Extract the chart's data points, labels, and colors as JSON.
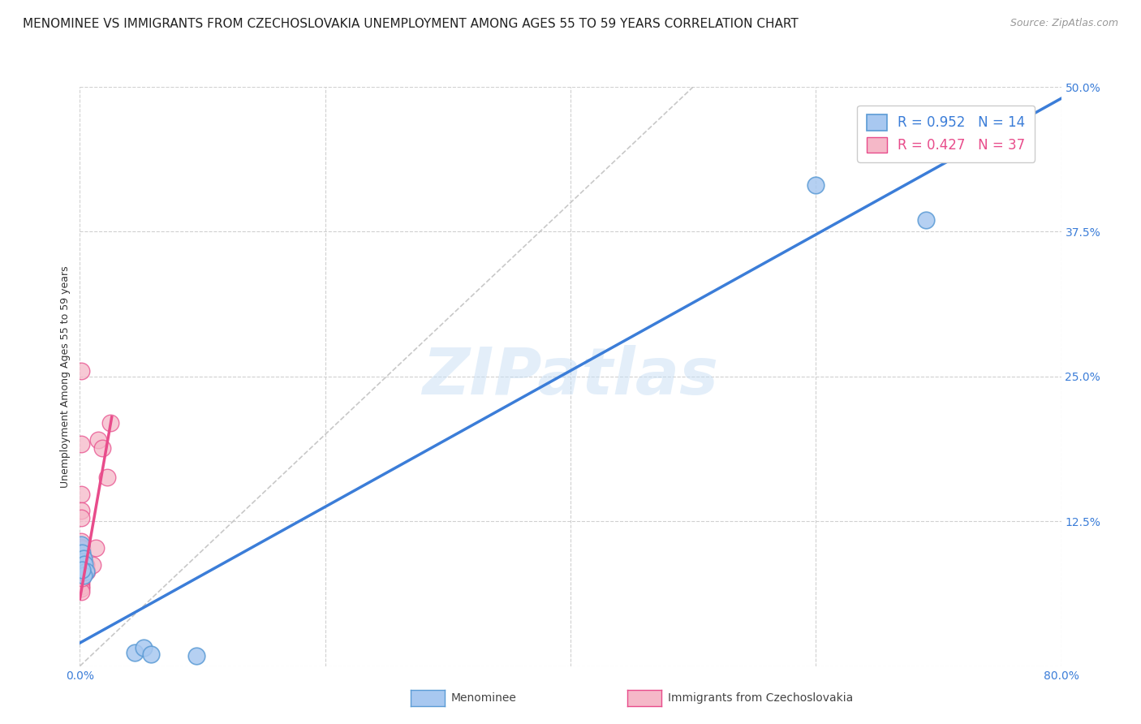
{
  "title": "MENOMINEE VS IMMIGRANTS FROM CZECHOSLOVAKIA UNEMPLOYMENT AMONG AGES 55 TO 59 YEARS CORRELATION CHART",
  "source": "Source: ZipAtlas.com",
  "ylabel": "Unemployment Among Ages 55 to 59 years",
  "xlim": [
    0.0,
    0.8
  ],
  "ylim": [
    0.0,
    0.5
  ],
  "xticks": [
    0.0,
    0.2,
    0.4,
    0.6,
    0.8
  ],
  "xticklabels": [
    "0.0%",
    "",
    "",
    "",
    "80.0%"
  ],
  "yticks": [
    0.0,
    0.125,
    0.25,
    0.375,
    0.5
  ],
  "yticklabels": [
    "",
    "12.5%",
    "25.0%",
    "37.5%",
    "50.0%"
  ],
  "watermark": "ZIPatlas",
  "legend_line1": "R = 0.952   N = 14",
  "legend_line2": "R = 0.427   N = 37",
  "blue_scatter": [
    [
      0.001,
      0.105
    ],
    [
      0.002,
      0.098
    ],
    [
      0.002,
      0.09
    ],
    [
      0.003,
      0.093
    ],
    [
      0.004,
      0.088
    ],
    [
      0.005,
      0.082
    ],
    [
      0.003,
      0.078
    ],
    [
      0.002,
      0.083
    ],
    [
      0.045,
      0.012
    ],
    [
      0.052,
      0.016
    ],
    [
      0.058,
      0.01
    ],
    [
      0.095,
      0.009
    ],
    [
      0.6,
      0.415
    ],
    [
      0.69,
      0.385
    ]
  ],
  "pink_scatter": [
    [
      0.001,
      0.255
    ],
    [
      0.001,
      0.192
    ],
    [
      0.001,
      0.148
    ],
    [
      0.001,
      0.134
    ],
    [
      0.001,
      0.128
    ],
    [
      0.001,
      0.108
    ],
    [
      0.001,
      0.103
    ],
    [
      0.001,
      0.1
    ],
    [
      0.001,
      0.097
    ],
    [
      0.001,
      0.093
    ],
    [
      0.001,
      0.09
    ],
    [
      0.001,
      0.087
    ],
    [
      0.001,
      0.083
    ],
    [
      0.001,
      0.08
    ],
    [
      0.001,
      0.078
    ],
    [
      0.001,
      0.075
    ],
    [
      0.001,
      0.072
    ],
    [
      0.001,
      0.069
    ],
    [
      0.001,
      0.067
    ],
    [
      0.001,
      0.064
    ],
    [
      0.002,
      0.101
    ],
    [
      0.002,
      0.096
    ],
    [
      0.002,
      0.091
    ],
    [
      0.002,
      0.086
    ],
    [
      0.002,
      0.081
    ],
    [
      0.002,
      0.076
    ],
    [
      0.003,
      0.091
    ],
    [
      0.003,
      0.086
    ],
    [
      0.003,
      0.081
    ],
    [
      0.005,
      0.087
    ],
    [
      0.006,
      0.082
    ],
    [
      0.01,
      0.087
    ],
    [
      0.013,
      0.102
    ],
    [
      0.015,
      0.195
    ],
    [
      0.018,
      0.188
    ],
    [
      0.022,
      0.163
    ],
    [
      0.025,
      0.21
    ]
  ],
  "blue_line_x": [
    0.0,
    0.8
  ],
  "blue_line_y": [
    0.02,
    0.49
  ],
  "pink_line_x": [
    0.0,
    0.026
  ],
  "pink_line_y": [
    0.058,
    0.215
  ],
  "diagonal_line_x": [
    0.0,
    0.5
  ],
  "diagonal_line_y": [
    0.0,
    0.5
  ],
  "blue_scatter_color_face": "#a8c8f0",
  "blue_scatter_color_edge": "#5b9bd5",
  "pink_scatter_color_face": "#f5b8c8",
  "pink_scatter_color_edge": "#e84c8b",
  "blue_line_color": "#3b7dd8",
  "pink_line_color": "#e84c8b",
  "diagonal_color": "#c8c8c8",
  "tick_color": "#3b7dd8",
  "bg_color": "#ffffff",
  "title_fontsize": 11,
  "tick_fontsize": 10,
  "ylabel_fontsize": 9
}
